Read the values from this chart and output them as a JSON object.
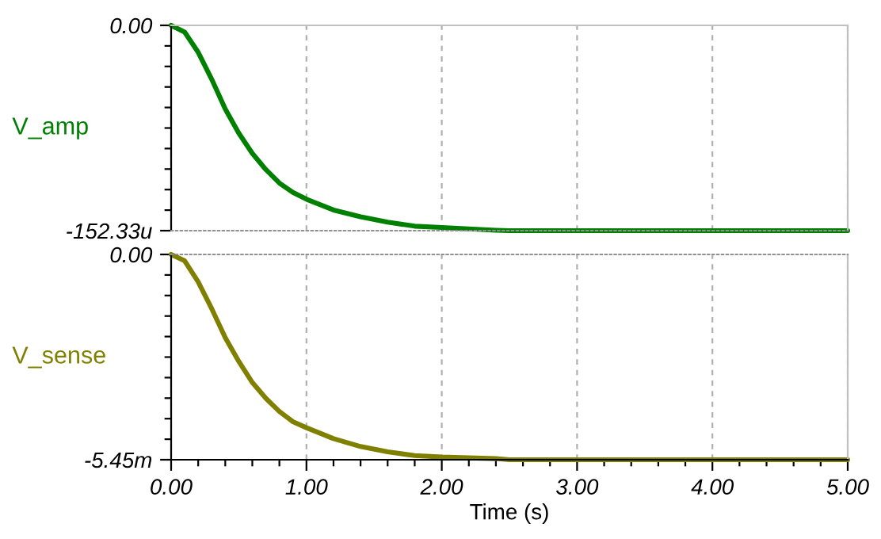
{
  "chart_data": [
    {
      "type": "line",
      "ylabel": "V_amp",
      "x": [
        0,
        0.1,
        0.2,
        0.3,
        0.4,
        0.5,
        0.6,
        0.7,
        0.8,
        0.9,
        1.0,
        1.2,
        1.4,
        1.6,
        1.8,
        2.0,
        2.4,
        2.5,
        5.0
      ],
      "series": [
        {
          "color": "#008000",
          "values": [
            0,
            -5,
            -20,
            -40,
            -62,
            -80,
            -95,
            -107,
            -117,
            -124,
            -129,
            -137,
            -142,
            -146,
            -149,
            -150,
            -152,
            -152.33,
            -152.33
          ]
        }
      ],
      "xlim": [
        0,
        5
      ],
      "xticks": [
        0,
        1,
        2,
        3,
        4,
        5
      ],
      "ylim": [
        -152.33,
        0
      ],
      "yticks": [
        {
          "value": 0,
          "label": "0.00"
        },
        {
          "value": -15.233,
          "label": null
        },
        {
          "value": -30.466,
          "label": null
        },
        {
          "value": -45.699,
          "label": null
        },
        {
          "value": -60.932,
          "label": null
        },
        {
          "value": -76.165,
          "label": null
        },
        {
          "value": -91.398,
          "label": null
        },
        {
          "value": -106.631,
          "label": null
        },
        {
          "value": -121.864,
          "label": null
        },
        {
          "value": -137.097,
          "label": null
        },
        {
          "value": -152.33,
          "label": "-152.33u"
        }
      ],
      "grid": "x",
      "tick_labels": "y"
    },
    {
      "type": "line",
      "ylabel": "V_sense",
      "xlabel": "Time (s)",
      "x": [
        0,
        0.1,
        0.2,
        0.3,
        0.4,
        0.5,
        0.6,
        0.7,
        0.8,
        0.9,
        1.0,
        1.2,
        1.4,
        1.6,
        1.8,
        2.0,
        2.4,
        2.5,
        5.0
      ],
      "series": [
        {
          "color": "#808000",
          "values": [
            0,
            -0.17,
            -0.73,
            -1.44,
            -2.21,
            -2.84,
            -3.4,
            -3.82,
            -4.17,
            -4.44,
            -4.6,
            -4.89,
            -5.1,
            -5.24,
            -5.34,
            -5.38,
            -5.42,
            -5.45,
            -5.45
          ]
        }
      ],
      "xlim": [
        0,
        5
      ],
      "xticks": [
        {
          "value": 0,
          "label": "0.00"
        },
        {
          "value": 0.2,
          "label": null
        },
        {
          "value": 0.4,
          "label": null
        },
        {
          "value": 0.6,
          "label": null
        },
        {
          "value": 0.8,
          "label": null
        },
        {
          "value": 1,
          "label": "1.00"
        },
        {
          "value": 1.2,
          "label": null
        },
        {
          "value": 1.4,
          "label": null
        },
        {
          "value": 1.6,
          "label": null
        },
        {
          "value": 1.8,
          "label": null
        },
        {
          "value": 2,
          "label": "2.00"
        },
        {
          "value": 2.2,
          "label": null
        },
        {
          "value": 2.4,
          "label": null
        },
        {
          "value": 2.6,
          "label": null
        },
        {
          "value": 2.8,
          "label": null
        },
        {
          "value": 3,
          "label": "3.00"
        },
        {
          "value": 3.2,
          "label": null
        },
        {
          "value": 3.4,
          "label": null
        },
        {
          "value": 3.6,
          "label": null
        },
        {
          "value": 3.8,
          "label": null
        },
        {
          "value": 4,
          "label": "4.00"
        },
        {
          "value": 4.2,
          "label": null
        },
        {
          "value": 4.4,
          "label": null
        },
        {
          "value": 4.6,
          "label": null
        },
        {
          "value": 4.8,
          "label": null
        },
        {
          "value": 5,
          "label": "5.00"
        }
      ],
      "ylim": [
        -5.45,
        0
      ],
      "yticks": [
        {
          "value": 0,
          "label": "0.00"
        },
        {
          "value": -0.545,
          "label": null
        },
        {
          "value": -1.09,
          "label": null
        },
        {
          "value": -1.635,
          "label": null
        },
        {
          "value": -2.18,
          "label": null
        },
        {
          "value": -2.725,
          "label": null
        },
        {
          "value": -3.27,
          "label": null
        },
        {
          "value": -3.815,
          "label": null
        },
        {
          "value": -4.36,
          "label": null
        },
        {
          "value": -4.905,
          "label": null
        },
        {
          "value": -5.45,
          "label": "-5.45m"
        }
      ],
      "grid": "x"
    }
  ]
}
